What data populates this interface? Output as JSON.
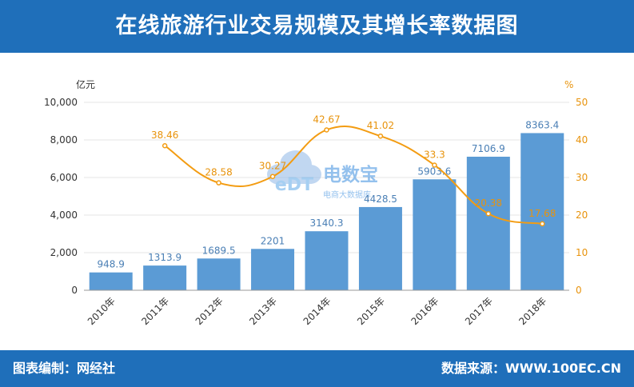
{
  "header": {
    "title": "在线旅游行业交易规模及其增长率数据图"
  },
  "footer": {
    "left": "图表编制：网经社",
    "right": "数据来源：WWW.100EC.CN"
  },
  "watermark": {
    "logo_text": "eDT",
    "brand": "电数宝",
    "sub": "电商大数据库"
  },
  "colors": {
    "bar": "#5b9bd5",
    "line": "#f39c12",
    "header": "#1f6fba",
    "bar_label": "#4a7fb5",
    "line_label": "#e8930c"
  },
  "chart_data": {
    "type": "bar",
    "categories": [
      "2010年",
      "2011年",
      "2012年",
      "2013年",
      "2014年",
      "2015年",
      "2016年",
      "2017年",
      "2018年"
    ],
    "series": [
      {
        "type": "bar",
        "values": [
          948.9,
          1313.9,
          1689.5,
          2201,
          3140.3,
          4428.5,
          5903.6,
          7106.9,
          8363.4
        ],
        "labels": [
          "948.9",
          "1313.9",
          "1689.5",
          "2201",
          "3140.3",
          "4428.5",
          "5903.6",
          "7106.9",
          "8363.4"
        ]
      },
      {
        "type": "line",
        "values": [
          null,
          38.46,
          28.58,
          30.27,
          42.67,
          41.02,
          33.3,
          20.38,
          17.68
        ],
        "labels": [
          "",
          "38.46",
          "28.58",
          "30.27",
          "42.67",
          "41.02",
          "33.3",
          "20.38",
          "17.68"
        ]
      }
    ],
    "y_left": {
      "unit": "亿元",
      "range": [
        0,
        10000
      ],
      "ticks": [
        0,
        2000,
        4000,
        6000,
        8000,
        10000
      ],
      "tick_labels": [
        "0",
        "2,000",
        "4,000",
        "6,000",
        "8,000",
        "10,000"
      ]
    },
    "y_right": {
      "unit": "%",
      "range": [
        0,
        50
      ],
      "ticks": [
        0,
        10,
        20,
        30,
        40,
        50
      ],
      "tick_labels": [
        "0",
        "10",
        "20",
        "30",
        "40",
        "50"
      ]
    },
    "grid": true,
    "legend": "none"
  }
}
